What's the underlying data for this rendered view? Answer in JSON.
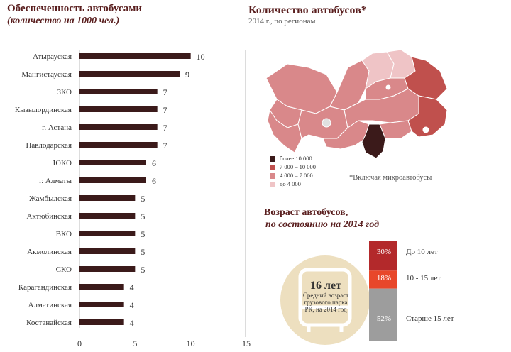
{
  "chart_data": [
    {
      "type": "bar",
      "orientation": "horizontal",
      "title": "Обеспеченность автобусами",
      "subtitle": "(количество на 1000 чел.)",
      "categories": [
        "Атырауская",
        "Мангистауская",
        "ЗКО",
        "Кызылординская",
        "г. Астана",
        "Павлодарская",
        "ЮКО",
        "г. Алматы",
        "Жамбылская",
        "Актюбинская",
        "ВКО",
        "Акмолинская",
        "СКО",
        "Карагандинская",
        "Алматинская",
        "Костанайская"
      ],
      "values": [
        10,
        9,
        7,
        7,
        7,
        7,
        6,
        6,
        5,
        5,
        5,
        5,
        5,
        4,
        4,
        4
      ],
      "xlim": [
        0,
        15
      ],
      "xticks": [
        0,
        5,
        10,
        15
      ],
      "bar_color": "#3b1a1a"
    },
    {
      "type": "stacked-bar",
      "title": "Возраст автобусов,",
      "subtitle": "по состоянию на 2014 год",
      "segments": [
        {
          "label": "30%",
          "value": 30,
          "name": "До 10 лет",
          "color": "#b3292b"
        },
        {
          "label": "18%",
          "value": 18,
          "name": "10 - 15 лет",
          "color": "#e8472a"
        },
        {
          "label": "52%",
          "value": 52,
          "name": "Старше 15 лет",
          "color": "#9d9d9d"
        }
      ],
      "callout": {
        "value": "16 лет",
        "text": [
          "Средний возраст",
          "грузового парка",
          "РК, на 2014 год"
        ]
      }
    }
  ],
  "map": {
    "title": "Количество автобусов*",
    "subtitle": "2014 г., по регионам",
    "note": "*Включая микроавтобусы",
    "legend": [
      {
        "label": "более 10 000",
        "color": "#3b1a1a"
      },
      {
        "label": "7 000 – 10 000",
        "color": "#c0504d"
      },
      {
        "label": "4 000 – 7 000",
        "color": "#d9888a"
      },
      {
        "label": "до 4 000",
        "color": "#efc4c6"
      }
    ]
  }
}
